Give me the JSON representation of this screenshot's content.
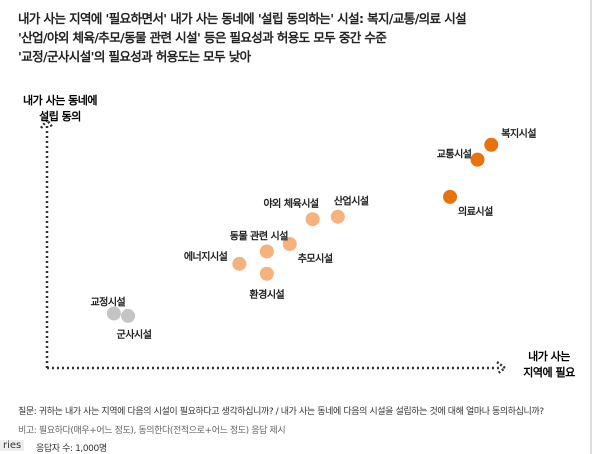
{
  "title_lines": [
    "내가 사는 지역에 '필요하면서' 내가 사는 동네에 '설립 동의하는' 시설: 복지/교통/의료 시설",
    "'산업/야외 체육/추모/동물 관련 시설' 등은 필요성과 허용도 모두 중간 수준",
    "'교정/군사시설'의 필요성과 허용도는 모두 낮아"
  ],
  "chart_data": {
    "type": "scatter",
    "title": "",
    "xlabel": [
      "내가 사는",
      "지역에 필요"
    ],
    "ylabel": [
      "내가 사는 동네에",
      "설립 동의"
    ],
    "xlim": [
      0,
      100
    ],
    "ylim": [
      0,
      100
    ],
    "grid": false,
    "points": [
      {
        "label": "복지시설",
        "x": 97,
        "y": 90,
        "color": "#e8730c"
      },
      {
        "label": "교통시설",
        "x": 94,
        "y": 84,
        "color": "#e8730c"
      },
      {
        "label": "의료시설",
        "x": 88,
        "y": 69,
        "color": "#e8730c"
      },
      {
        "label": "산업시설",
        "x": 63.5,
        "y": 61,
        "color": "#f5b27c"
      },
      {
        "label": "야외 체육시설",
        "x": 58,
        "y": 60,
        "color": "#f5b27c"
      },
      {
        "label": "추모시설",
        "x": 53,
        "y": 50,
        "color": "#f5b27c"
      },
      {
        "label": "동물 관련 시설",
        "x": 48,
        "y": 47,
        "color": "#f5b27c"
      },
      {
        "label": "에너지시설",
        "x": 42,
        "y": 42,
        "color": "#f5b27c"
      },
      {
        "label": "환경시설",
        "x": 48,
        "y": 38,
        "color": "#f5b27c"
      },
      {
        "label": "교정시설",
        "x": 14.6,
        "y": 22,
        "color": "#c4c4c4"
      },
      {
        "label": "군사시설",
        "x": 17.7,
        "y": 21,
        "color": "#c4c4c4"
      }
    ]
  },
  "footer": {
    "question": "질문:  귀하는 내가 사는 지역에 다음의 시설이 필요하다고 생각하십니까? / 내가 사는 동네에 다음의 시설을 설립하는 것에 대해 얼마나 동의하십니까?",
    "note": "비고: 필요하다(매우+어느 정도), 동의한다(전적으로+어느 정도) 응답 제시",
    "respondents": "응답자 수: 1,000명"
  },
  "side_tab": "ries"
}
